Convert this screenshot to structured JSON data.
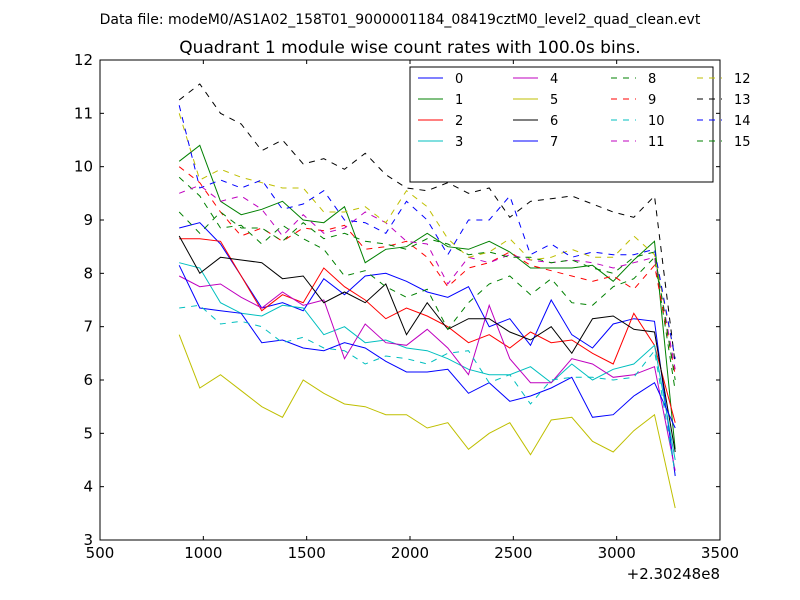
{
  "header": {
    "datafile": "Data file: modeM0/AS1A02_158T01_9000001184_08419cztM0_level2_quad_clean.evt"
  },
  "chart_data": {
    "type": "line",
    "title": "Quadrant 1 module wise count rates with 100.0s bins.",
    "xlabel": "",
    "ylabel": "",
    "x_offset_label": "+2.30248e8",
    "xlim": [
      500,
      3500
    ],
    "ylim": [
      3,
      12
    ],
    "xticks": [
      500,
      1000,
      1500,
      2000,
      2500,
      3000,
      3500
    ],
    "xtick_labels": [
      "500",
      "1000",
      "1500",
      "2000",
      "2500",
      "3000",
      "3500"
    ],
    "yticks": [
      3,
      4,
      5,
      6,
      7,
      8,
      9,
      10,
      11,
      12
    ],
    "ytick_labels": [
      "3",
      "4",
      "5",
      "6",
      "7",
      "8",
      "9",
      "10",
      "11",
      "12"
    ],
    "grid": false,
    "legend_position": "upper-right",
    "legend_columns": 4,
    "x": [
      883,
      983,
      1083,
      1183,
      1283,
      1383,
      1483,
      1583,
      1683,
      1783,
      1883,
      1983,
      2083,
      2183,
      2283,
      2383,
      2483,
      2583,
      2683,
      2783,
      2883,
      2983,
      3083,
      3183,
      3283
    ],
    "series": [
      {
        "name": "0",
        "color": "#0000ff",
        "dash": "solid",
        "values": [
          8.85,
          8.95,
          8.55,
          7.95,
          7.35,
          7.45,
          7.3,
          7.9,
          7.6,
          7.95,
          8.0,
          7.85,
          7.65,
          7.55,
          7.75,
          7.0,
          7.15,
          6.65,
          7.5,
          6.85,
          6.6,
          7.05,
          7.15,
          7.1,
          4.2
        ]
      },
      {
        "name": "1",
        "color": "#008000",
        "dash": "solid",
        "values": [
          10.1,
          10.4,
          9.35,
          9.1,
          9.2,
          9.35,
          9.0,
          8.95,
          9.25,
          8.2,
          8.45,
          8.5,
          8.75,
          8.5,
          8.45,
          8.6,
          8.4,
          8.1,
          8.1,
          8.1,
          8.15,
          7.85,
          8.25,
          8.6,
          4.7
        ]
      },
      {
        "name": "2",
        "color": "#ff0000",
        "dash": "solid",
        "values": [
          8.65,
          8.65,
          8.6,
          7.95,
          7.3,
          7.6,
          7.45,
          8.1,
          7.75,
          7.5,
          7.15,
          7.35,
          7.2,
          7.0,
          6.7,
          6.85,
          6.6,
          6.9,
          6.7,
          6.75,
          6.5,
          6.3,
          7.25,
          6.65,
          5.2
        ]
      },
      {
        "name": "3",
        "color": "#00bfbf",
        "dash": "solid",
        "values": [
          8.2,
          8.1,
          7.45,
          7.25,
          7.2,
          7.4,
          7.35,
          6.85,
          7.0,
          6.7,
          6.75,
          6.6,
          6.55,
          6.4,
          6.2,
          6.1,
          6.1,
          6.25,
          5.95,
          6.3,
          6.0,
          6.2,
          6.3,
          6.65,
          4.5
        ]
      },
      {
        "name": "4",
        "color": "#bf00bf",
        "dash": "solid",
        "values": [
          7.95,
          7.75,
          7.8,
          7.55,
          7.35,
          7.65,
          7.4,
          7.5,
          6.4,
          7.05,
          6.7,
          6.65,
          6.95,
          6.6,
          6.1,
          7.4,
          6.4,
          5.95,
          5.95,
          6.4,
          6.3,
          6.05,
          6.1,
          6.25,
          4.3
        ]
      },
      {
        "name": "5",
        "color": "#bfbf00",
        "dash": "solid",
        "values": [
          6.85,
          5.85,
          6.1,
          5.8,
          5.5,
          5.3,
          6.0,
          5.75,
          5.55,
          5.5,
          5.35,
          5.35,
          5.1,
          5.2,
          4.7,
          5.0,
          5.2,
          4.6,
          5.25,
          5.3,
          4.85,
          4.65,
          5.05,
          5.35,
          3.6
        ]
      },
      {
        "name": "6",
        "color": "#000000",
        "dash": "solid",
        "values": [
          8.7,
          8.0,
          8.3,
          8.25,
          8.2,
          7.9,
          7.95,
          7.45,
          7.65,
          7.45,
          7.8,
          6.85,
          7.45,
          6.95,
          7.15,
          7.15,
          6.9,
          6.75,
          7.0,
          6.5,
          7.15,
          7.2,
          6.95,
          6.9,
          4.65
        ]
      },
      {
        "name": "7",
        "color": "#0000ff",
        "dash": "solid",
        "values": [
          8.15,
          7.35,
          7.3,
          7.25,
          6.7,
          6.75,
          6.6,
          6.55,
          6.7,
          6.6,
          6.35,
          6.15,
          6.15,
          6.2,
          5.75,
          5.95,
          5.6,
          5.7,
          5.85,
          6.05,
          5.3,
          5.35,
          5.7,
          5.95,
          5.1
        ]
      },
      {
        "name": "8",
        "color": "#008000",
        "dash": "dashed",
        "values": [
          9.8,
          9.45,
          8.85,
          8.9,
          8.55,
          8.9,
          8.65,
          8.45,
          7.95,
          8.05,
          7.75,
          7.55,
          7.7,
          6.95,
          7.45,
          7.8,
          7.95,
          7.6,
          7.9,
          7.45,
          7.4,
          7.75,
          7.9,
          8.3,
          5.8
        ]
      },
      {
        "name": "9",
        "color": "#ff0000",
        "dash": "dashed",
        "values": [
          10.0,
          9.7,
          9.15,
          8.7,
          8.85,
          8.6,
          8.85,
          8.8,
          8.9,
          8.45,
          8.5,
          8.6,
          8.3,
          7.75,
          8.1,
          8.2,
          8.4,
          8.15,
          8.05,
          7.95,
          7.85,
          7.95,
          7.7,
          8.15,
          6.1
        ]
      },
      {
        "name": "10",
        "color": "#00bfbf",
        "dash": "dashed",
        "values": [
          7.35,
          7.4,
          7.05,
          7.1,
          7.0,
          6.7,
          6.8,
          6.6,
          6.55,
          6.3,
          6.45,
          6.4,
          6.3,
          6.5,
          6.55,
          5.95,
          6.1,
          5.55,
          6.0,
          6.05,
          6.05,
          6.0,
          6.05,
          6.55,
          4.25
        ]
      },
      {
        "name": "11",
        "color": "#bf00bf",
        "dash": "dashed",
        "values": [
          9.5,
          9.65,
          9.35,
          9.45,
          9.2,
          8.7,
          9.1,
          8.75,
          8.85,
          9.15,
          8.95,
          8.6,
          8.55,
          7.8,
          8.3,
          8.2,
          8.35,
          8.25,
          8.2,
          8.25,
          8.2,
          8.1,
          8.2,
          8.3,
          6.2
        ]
      },
      {
        "name": "12",
        "color": "#bfbf00",
        "dash": "dashed",
        "values": [
          11.0,
          9.75,
          9.95,
          9.8,
          9.7,
          9.6,
          9.6,
          9.15,
          9.15,
          9.25,
          8.95,
          9.55,
          9.25,
          8.65,
          8.3,
          8.4,
          8.65,
          8.25,
          8.3,
          8.45,
          8.3,
          8.3,
          8.7,
          8.35,
          6.4
        ]
      },
      {
        "name": "13",
        "color": "#000000",
        "dash": "dashed",
        "values": [
          11.25,
          11.55,
          11.0,
          10.8,
          10.3,
          10.5,
          10.05,
          10.15,
          9.95,
          10.25,
          9.85,
          9.6,
          9.55,
          9.7,
          9.5,
          9.6,
          9.05,
          9.35,
          9.4,
          9.45,
          9.3,
          9.15,
          9.05,
          9.45,
          6.3
        ]
      },
      {
        "name": "14",
        "color": "#0000ff",
        "dash": "dashed",
        "values": [
          11.15,
          9.6,
          9.75,
          9.6,
          9.75,
          9.2,
          9.3,
          9.55,
          9.0,
          8.95,
          8.75,
          9.35,
          9.0,
          8.35,
          9.0,
          9.0,
          9.45,
          8.35,
          8.55,
          8.3,
          8.4,
          8.35,
          8.35,
          8.45,
          6.4
        ]
      },
      {
        "name": "15",
        "color": "#008000",
        "dash": "dashed",
        "values": [
          9.15,
          8.75,
          9.15,
          8.85,
          8.85,
          8.6,
          8.95,
          8.65,
          8.75,
          8.6,
          8.55,
          8.45,
          8.65,
          8.55,
          8.35,
          8.4,
          8.3,
          8.3,
          8.2,
          8.25,
          8.1,
          8.0,
          8.3,
          8.4,
          6.0
        ]
      }
    ]
  }
}
